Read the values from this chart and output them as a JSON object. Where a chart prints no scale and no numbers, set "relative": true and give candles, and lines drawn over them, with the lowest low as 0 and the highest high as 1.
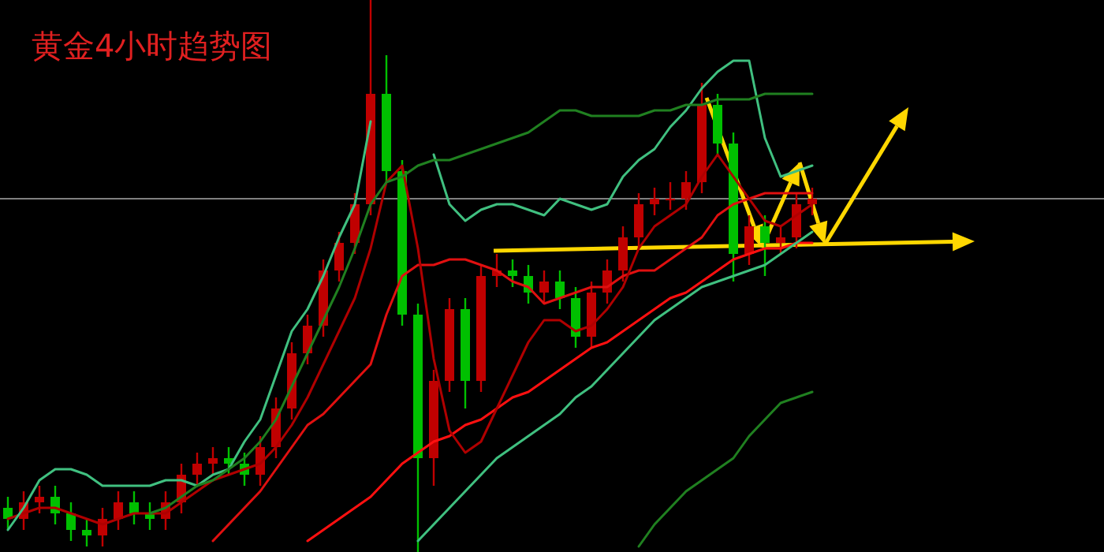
{
  "chart_data": {
    "type": "candlestick",
    "title": "黄金4小时趋势图",
    "relative": true,
    "grid": false,
    "categories": [
      null,
      null,
      null,
      null,
      null,
      null,
      null,
      null,
      null,
      null,
      null,
      null,
      null,
      null,
      null,
      null,
      null,
      null,
      null,
      null,
      null,
      null,
      null,
      null,
      null,
      null,
      null,
      null,
      null,
      null,
      null,
      null,
      null,
      null,
      null,
      null,
      null,
      null,
      null,
      null,
      null,
      null,
      null,
      null,
      null,
      null,
      null,
      null,
      null,
      null,
      null,
      null,
      null,
      null,
      null,
      null,
      null,
      null,
      null,
      null,
      null,
      null,
      null,
      null,
      null,
      null,
      null,
      null,
      null,
      null
    ],
    "ohlc": [
      [
        0.08,
        0.1,
        0.04,
        0.06
      ],
      [
        0.06,
        0.11,
        0.04,
        0.09
      ],
      [
        0.09,
        0.12,
        0.07,
        0.1
      ],
      [
        0.1,
        0.12,
        0.05,
        0.07
      ],
      [
        0.07,
        0.09,
        0.02,
        0.04
      ],
      [
        0.04,
        0.06,
        0.01,
        0.03
      ],
      [
        0.03,
        0.08,
        0.01,
        0.06
      ],
      [
        0.06,
        0.11,
        0.04,
        0.09
      ],
      [
        0.09,
        0.11,
        0.05,
        0.07
      ],
      [
        0.07,
        0.09,
        0.04,
        0.06
      ],
      [
        0.06,
        0.11,
        0.04,
        0.09
      ],
      [
        0.09,
        0.16,
        0.07,
        0.14
      ],
      [
        0.14,
        0.18,
        0.12,
        0.16
      ],
      [
        0.16,
        0.19,
        0.14,
        0.17
      ],
      [
        0.17,
        0.19,
        0.14,
        0.16
      ],
      [
        0.16,
        0.18,
        0.12,
        0.14
      ],
      [
        0.14,
        0.21,
        0.12,
        0.19
      ],
      [
        0.19,
        0.28,
        0.17,
        0.26
      ],
      [
        0.26,
        0.38,
        0.24,
        0.36
      ],
      [
        0.36,
        0.43,
        0.34,
        0.41
      ],
      [
        0.41,
        0.53,
        0.39,
        0.51
      ],
      [
        0.51,
        0.58,
        0.49,
        0.56
      ],
      [
        0.56,
        0.65,
        0.54,
        0.63
      ],
      [
        0.63,
        1,
        0.61,
        0.83
      ],
      [
        0.83,
        0.9,
        0.67,
        0.69
      ],
      [
        0.69,
        0.71,
        0.41,
        0.43
      ],
      [
        0.43,
        0.45,
        0,
        0.17
      ],
      [
        0.17,
        0.33,
        0.12,
        0.31
      ],
      [
        0.31,
        0.46,
        0.29,
        0.44
      ],
      [
        0.44,
        0.46,
        0.26,
        0.31
      ],
      [
        0.31,
        0.52,
        0.29,
        0.5
      ],
      [
        0.5,
        0.54,
        0.48,
        0.51
      ],
      [
        0.51,
        0.53,
        0.48,
        0.5
      ],
      [
        0.5,
        0.52,
        0.45,
        0.47
      ],
      [
        0.47,
        0.51,
        0.45,
        0.49
      ],
      [
        0.49,
        0.51,
        0.44,
        0.46
      ],
      [
        0.46,
        0.48,
        0.37,
        0.39
      ],
      [
        0.39,
        0.49,
        0.37,
        0.47
      ],
      [
        0.47,
        0.53,
        0.45,
        0.51
      ],
      [
        0.51,
        0.59,
        0.49,
        0.57
      ],
      [
        0.57,
        0.65,
        0.55,
        0.63
      ],
      [
        0.63,
        0.66,
        0.61,
        0.64
      ],
      [
        0.64,
        0.67,
        0.62,
        0.64
      ],
      [
        0.64,
        0.69,
        0.62,
        0.67
      ],
      [
        0.67,
        0.85,
        0.65,
        0.81
      ],
      [
        0.81,
        0.83,
        0.72,
        0.74
      ],
      [
        0.74,
        0.76,
        0.49,
        0.54
      ],
      [
        0.54,
        0.61,
        0.52,
        0.59
      ],
      [
        0.59,
        0.61,
        0.5,
        0.56
      ],
      [
        0.56,
        0.59,
        0.54,
        0.57
      ],
      [
        0.57,
        0.65,
        0.55,
        0.63
      ],
      [
        0.63,
        0.66,
        0.61,
        0.64
      ],
      null,
      null,
      null,
      null,
      null,
      null,
      null,
      null,
      null,
      null,
      null,
      null,
      null,
      null,
      null,
      null,
      null,
      null
    ],
    "series": [
      {
        "type": "line",
        "color": "#ff1010",
        "values": [
          null,
          null,
          null,
          null,
          null,
          null,
          null,
          null,
          null,
          null,
          null,
          null,
          null,
          null,
          null,
          null,
          null,
          null,
          null,
          0.02,
          0.04,
          0.06,
          0.08,
          0.1,
          0.13,
          0.16,
          0.18,
          0.2,
          0.21,
          0.23,
          0.24,
          0.26,
          0.28,
          0.29,
          0.31,
          0.33,
          0.35,
          0.37,
          0.38,
          0.4,
          0.42,
          0.44,
          0.46,
          0.47,
          0.49,
          0.51,
          0.53,
          0.54,
          0.55,
          0.55,
          0.56,
          0.56,
          null,
          null,
          null,
          null,
          null,
          null,
          null,
          null,
          null,
          null,
          null,
          null,
          null,
          null,
          null,
          null,
          null,
          null
        ]
      },
      {
        "type": "line",
        "color": "#e01010",
        "values": [
          null,
          null,
          null,
          null,
          null,
          null,
          null,
          null,
          null,
          null,
          null,
          null,
          null,
          0.02,
          0.05,
          0.08,
          0.11,
          0.15,
          0.19,
          0.23,
          0.25,
          0.28,
          0.31,
          0.34,
          0.43,
          0.5,
          0.52,
          0.52,
          0.53,
          0.53,
          0.52,
          0.51,
          0.49,
          0.48,
          0.45,
          0.46,
          0.47,
          0.48,
          0.48,
          0.5,
          0.51,
          0.51,
          0.53,
          0.55,
          0.57,
          0.61,
          0.63,
          0.64,
          0.65,
          0.65,
          0.65,
          0.65,
          null,
          null,
          null,
          null,
          null,
          null,
          null,
          null,
          null,
          null,
          null,
          null,
          null,
          null,
          null,
          null,
          null,
          null
        ]
      },
      {
        "type": "line",
        "color": "#b00000",
        "values": [
          0.06,
          0.07,
          0.08,
          0.08,
          0.07,
          0.06,
          0.05,
          0.06,
          0.07,
          0.07,
          0.07,
          0.09,
          0.11,
          0.13,
          0.14,
          0.15,
          0.16,
          0.19,
          0.23,
          0.28,
          0.34,
          0.4,
          0.46,
          0.55,
          0.67,
          0.7,
          0.55,
          0.35,
          0.22,
          0.18,
          0.2,
          0.26,
          0.32,
          0.38,
          0.42,
          0.42,
          0.4,
          0.41,
          0.44,
          0.48,
          0.55,
          0.59,
          0.61,
          0.63,
          0.68,
          0.72,
          0.68,
          0.64,
          0.6,
          0.59,
          0.61,
          0.63,
          null,
          null,
          null,
          null,
          null,
          null,
          null,
          null,
          null,
          null,
          null,
          null,
          null,
          null,
          null,
          null,
          null,
          null
        ]
      },
      {
        "type": "line",
        "color": "#40c080",
        "values": [
          0.04,
          0.08,
          0.13,
          0.15,
          0.15,
          0.14,
          0.12,
          0.12,
          0.12,
          0.12,
          0.13,
          0.13,
          0.12,
          0.14,
          0.15,
          0.2,
          0.24,
          0.32,
          0.4,
          0.44,
          0.5,
          0.57,
          0.63,
          0.78,
          null,
          null,
          null,
          0.72,
          0.63,
          0.6,
          0.62,
          0.63,
          0.63,
          0.62,
          0.61,
          0.64,
          0.63,
          0.62,
          0.63,
          0.68,
          0.71,
          0.73,
          0.77,
          0.8,
          0.84,
          0.87,
          0.89,
          0.89,
          0.75,
          0.68,
          0.69,
          0.7,
          null,
          null,
          null,
          null,
          null,
          null,
          null,
          null,
          null,
          null,
          null,
          null,
          null,
          null,
          null,
          null,
          null,
          null
        ]
      },
      {
        "type": "line",
        "color": "#40c080",
        "values": [
          null,
          null,
          null,
          null,
          null,
          null,
          null,
          null,
          null,
          null,
          null,
          null,
          null,
          null,
          null,
          null,
          null,
          null,
          null,
          null,
          null,
          null,
          null,
          null,
          null,
          null,
          0.02,
          0.05,
          0.08,
          0.11,
          0.14,
          0.17,
          0.19,
          0.21,
          0.23,
          0.25,
          0.28,
          0.3,
          0.33,
          0.36,
          0.39,
          0.42,
          0.44,
          0.46,
          0.48,
          0.49,
          0.5,
          0.51,
          0.52,
          0.54,
          0.56,
          0.58,
          null,
          null,
          null,
          null,
          null,
          null,
          null,
          null,
          null,
          null,
          null,
          null,
          null,
          null,
          null,
          null,
          null,
          null
        ]
      },
      {
        "type": "line",
        "color": "#208020",
        "values": [
          null,
          null,
          null,
          null,
          null,
          null,
          null,
          null,
          null,
          0.07,
          0.08,
          0.1,
          0.12,
          0.13,
          0.15,
          0.17,
          0.2,
          0.24,
          0.3,
          0.36,
          0.42,
          0.48,
          0.55,
          0.63,
          0.67,
          0.68,
          0.7,
          0.71,
          0.71,
          0.72,
          0.73,
          0.74,
          0.75,
          0.76,
          0.78,
          0.8,
          0.8,
          0.79,
          0.79,
          0.79,
          0.79,
          0.8,
          0.8,
          0.81,
          0.81,
          0.82,
          0.82,
          0.82,
          0.83,
          0.83,
          0.83,
          0.83,
          null,
          null,
          null,
          null,
          null,
          null,
          null,
          null,
          null,
          null,
          null,
          null,
          null,
          null,
          null,
          null,
          null,
          null
        ]
      },
      {
        "type": "line",
        "color": "#208020",
        "values": [
          null,
          null,
          null,
          null,
          null,
          null,
          null,
          null,
          null,
          null,
          null,
          null,
          null,
          null,
          null,
          null,
          null,
          null,
          null,
          null,
          null,
          null,
          null,
          null,
          null,
          null,
          null,
          null,
          null,
          null,
          null,
          null,
          null,
          null,
          null,
          null,
          null,
          null,
          null,
          null,
          0.01,
          0.05,
          0.08,
          0.11,
          0.13,
          0.15,
          0.17,
          0.21,
          0.24,
          0.27,
          0.28,
          0.29,
          null,
          null,
          null,
          null,
          null,
          null,
          null,
          null,
          null,
          null,
          null,
          null,
          null,
          null,
          null,
          null,
          null,
          null
        ]
      }
    ],
    "ref_lines": [
      {
        "axis": "y",
        "value": 0.64,
        "color": "#808080"
      }
    ]
  }
}
